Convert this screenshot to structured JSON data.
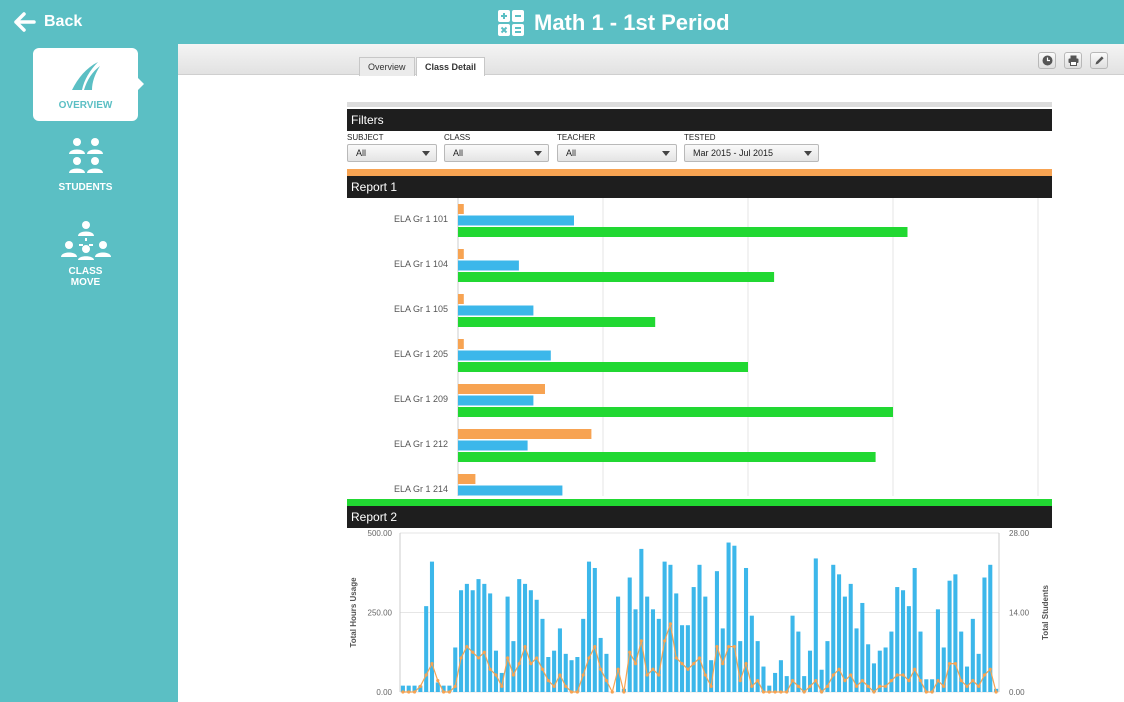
{
  "header": {
    "back_label": "Back",
    "title": "Math 1 - 1st Period",
    "bg_color": "#5bbfc4"
  },
  "sidebar": {
    "items": [
      {
        "label": "OVERVIEW",
        "icon": "overview-swoosh-icon",
        "active": true
      },
      {
        "label": "STUDENTS",
        "icon": "students-group-icon",
        "active": false
      },
      {
        "label_line1": "CLASS",
        "label_line2": "MOVE",
        "icon": "class-move-icon",
        "active": false
      }
    ]
  },
  "tabs": [
    {
      "label": "Overview",
      "active": false
    },
    {
      "label": "Class Detail",
      "active": true
    }
  ],
  "toolbar": {
    "icons": [
      "clock-icon",
      "print-icon",
      "edit-icon"
    ]
  },
  "filters": {
    "heading": "Filters",
    "subject": {
      "label": "SUBJECT",
      "value": "All"
    },
    "class": {
      "label": "CLASS",
      "value": "All"
    },
    "teacher": {
      "label": "TEACHER",
      "value": "All"
    },
    "tested": {
      "label": "TESTED",
      "value": "Mar 2015 - Jul 2015"
    }
  },
  "colors": {
    "orange": "#f7a352",
    "blue": "#3cb7ea",
    "green": "#21d832",
    "header_dark": "#1e1e1e"
  },
  "chart_data": [
    {
      "type": "bar",
      "orientation": "horizontal",
      "title": "Report 1",
      "categories": [
        "ELA Gr 1 101",
        "ELA Gr 1 104",
        "ELA Gr 1 105",
        "ELA Gr 1 205",
        "ELA Gr 1 209",
        "ELA Gr 1 212",
        "ELA Gr 1 214"
      ],
      "xlim": [
        0,
        20
      ],
      "grid": true,
      "series": [
        {
          "color": "#f7a352",
          "values": [
            0.2,
            0.2,
            0.2,
            0.2,
            3.0,
            4.6,
            0.6
          ]
        },
        {
          "color": "#3cb7ea",
          "values": [
            4.0,
            2.1,
            2.6,
            3.2,
            2.6,
            2.4,
            3.6
          ]
        },
        {
          "color": "#21d832",
          "values": [
            15.5,
            10.9,
            6.8,
            10.0,
            15.0,
            14.4,
            null
          ]
        }
      ]
    },
    {
      "type": "bar+line",
      "title": "Report 2",
      "ylabel": "Total Hours Usage",
      "y2label": "Total Students",
      "yticks": [
        "500.00",
        "250.00",
        "0.00"
      ],
      "y2ticks": [
        "28.00",
        "14.00",
        "0.00"
      ],
      "ylim": [
        0,
        500
      ],
      "y2lim": [
        0,
        28
      ],
      "grid": true,
      "bars": [
        20,
        20,
        20,
        20,
        270,
        410,
        30,
        20,
        20,
        140,
        320,
        340,
        320,
        355,
        340,
        310,
        130,
        60,
        300,
        160,
        355,
        340,
        320,
        290,
        230,
        110,
        130,
        200,
        120,
        100,
        110,
        230,
        410,
        390,
        170,
        120,
        0,
        300,
        10,
        360,
        260,
        450,
        300,
        260,
        230,
        410,
        400,
        310,
        210,
        210,
        330,
        400,
        300,
        100,
        380,
        200,
        470,
        460,
        160,
        390,
        240,
        160,
        80,
        20,
        60,
        100,
        50,
        240,
        190,
        50,
        130,
        420,
        70,
        160,
        400,
        370,
        300,
        340,
        200,
        280,
        150,
        90,
        130,
        140,
        190,
        330,
        320,
        270,
        390,
        190,
        40,
        40,
        260,
        140,
        350,
        370,
        190,
        80,
        230,
        120,
        360,
        400,
        10
      ],
      "line": [
        0,
        0,
        0,
        1,
        3,
        5,
        2,
        0,
        0,
        1,
        6,
        8,
        7,
        6,
        7,
        4,
        3,
        1,
        6,
        3,
        5,
        8,
        5,
        6,
        4,
        2,
        1,
        3,
        1,
        0,
        0,
        3,
        6,
        8,
        4,
        2,
        0,
        4,
        0,
        7,
        5,
        9,
        3,
        4,
        3,
        9,
        12,
        6,
        5,
        4,
        5,
        6,
        3,
        1,
        8,
        5,
        8,
        8,
        2,
        5,
        1,
        2,
        0,
        0,
        0,
        0,
        0,
        2,
        1,
        0,
        1,
        2,
        0,
        1,
        3,
        4,
        2,
        3,
        1,
        2,
        1,
        0,
        1,
        1,
        2,
        3,
        3,
        2,
        4,
        2,
        0,
        0,
        2,
        1,
        5,
        5,
        2,
        1,
        2,
        1,
        3,
        4,
        0
      ]
    }
  ]
}
